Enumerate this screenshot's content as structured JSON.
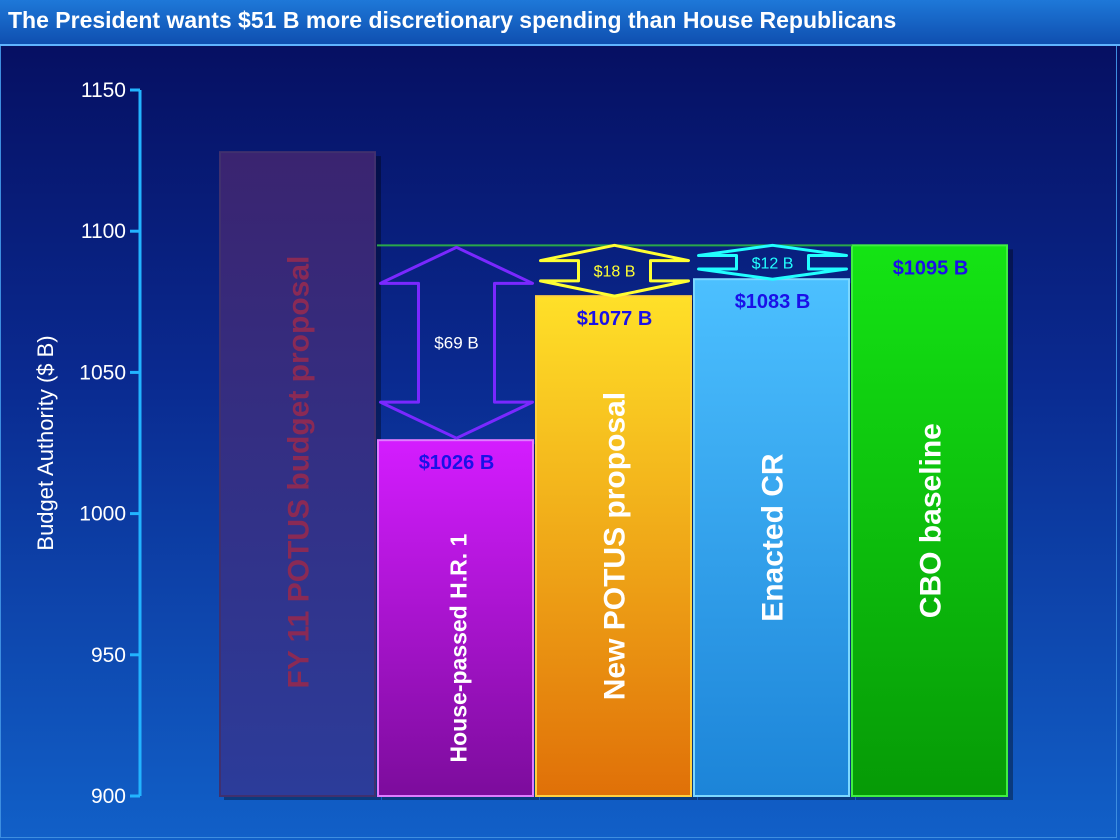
{
  "title": "The President wants $51 B more discretionary spending than House Republicans",
  "chart_data": {
    "type": "bar",
    "ylabel": "Budget Authority ($ B)",
    "ylim": [
      900,
      1150
    ],
    "yticks": [
      900,
      950,
      1000,
      1050,
      1100,
      1150
    ],
    "bars": [
      {
        "label": "FY 11 POTUS budget proposal",
        "value": 1128,
        "value_label": "",
        "color_top": "#3a2470",
        "color_bottom": "#2c3c9a",
        "border": "#40306e",
        "text_color": "#8a2a55"
      },
      {
        "label": "House-passed H.R. 1",
        "value": 1026,
        "value_label": "$1026 B",
        "color_top": "#d41cff",
        "color_bottom": "#7c0c9c",
        "border": "#e07cff",
        "text_color": "#ffffff"
      },
      {
        "label": "New POTUS proposal",
        "value": 1077,
        "value_label": "$1077 B",
        "color_top": "#ffe028",
        "color_bottom": "#e07008",
        "border": "#ffd040",
        "text_color": "#ffffff"
      },
      {
        "label": "Enacted CR",
        "value": 1083,
        "value_label": "$1083 B",
        "color_top": "#4cc0ff",
        "color_bottom": "#1c84d8",
        "border": "#7cd8ff",
        "text_color": "#ffffff"
      },
      {
        "label": "CBO baseline",
        "value": 1095,
        "value_label": "$1095 B",
        "color_top": "#14e414",
        "color_bottom": "#069a06",
        "border": "#40f040",
        "text_color": "#ffffff"
      }
    ],
    "reference_line": {
      "value": 1095,
      "color": "#2aa84a"
    },
    "gaps": [
      {
        "bar": 1,
        "from": 1026,
        "to": 1095,
        "label": "$69 B",
        "color": "#7a28ff",
        "label_color": "#ffffff"
      },
      {
        "bar": 2,
        "from": 1077,
        "to": 1095,
        "label": "$18 B",
        "color": "#ffff33",
        "label_color": "#ffff33"
      },
      {
        "bar": 3,
        "from": 1083,
        "to": 1095,
        "label": "$12 B",
        "color": "#22ffff",
        "label_color": "#22ffff"
      }
    ],
    "value_label_color": "#1a10e8"
  }
}
